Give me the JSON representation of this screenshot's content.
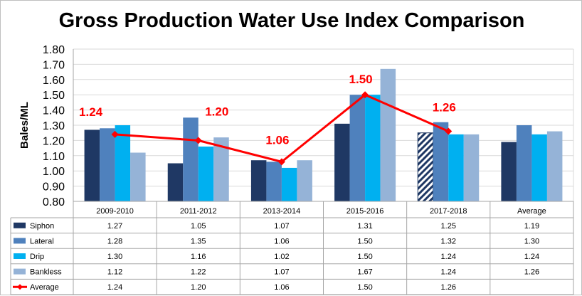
{
  "chart_data": {
    "type": "bar",
    "title": "Gross Production Water Use Index Comparison",
    "ylabel": "Bales/ML",
    "xlabel": "",
    "ylim": [
      0.8,
      1.8
    ],
    "yticks": [
      "0.80",
      "0.90",
      "1.00",
      "1.10",
      "1.20",
      "1.30",
      "1.40",
      "1.50",
      "1.60",
      "1.70",
      "1.80"
    ],
    "categories": [
      "2009-2010",
      "2011-2012",
      "2013-2014",
      "2015-2016",
      "2017-2018",
      "Average"
    ],
    "grid": true,
    "legend": "data-table",
    "series": [
      {
        "name": "Siphon",
        "type": "bar",
        "color": "#1f3864",
        "values": [
          1.27,
          1.05,
          1.07,
          1.31,
          1.25,
          1.19
        ],
        "labels": [
          "1.27",
          "1.05",
          "1.07",
          "1.31",
          "1.25",
          "1.19"
        ],
        "hatched_index": 4
      },
      {
        "name": "Lateral",
        "type": "bar",
        "color": "#4f81bd",
        "values": [
          1.28,
          1.35,
          1.06,
          1.5,
          1.32,
          1.3
        ],
        "labels": [
          "1.28",
          "1.35",
          "1.06",
          "1.50",
          "1.32",
          "1.30"
        ]
      },
      {
        "name": "Drip",
        "type": "bar",
        "color": "#00b0f0",
        "values": [
          1.3,
          1.16,
          1.02,
          1.5,
          1.24,
          1.24
        ],
        "labels": [
          "1.30",
          "1.16",
          "1.02",
          "1.50",
          "1.24",
          "1.24"
        ]
      },
      {
        "name": "Bankless",
        "type": "bar",
        "color": "#95b3d7",
        "values": [
          1.12,
          1.22,
          1.07,
          1.67,
          1.24,
          1.26
        ],
        "labels": [
          "1.12",
          "1.22",
          "1.07",
          "1.67",
          "1.24",
          "1.26"
        ]
      },
      {
        "name": "Average",
        "type": "line",
        "color": "#ff0000",
        "values": [
          1.24,
          1.2,
          1.06,
          1.5,
          1.26,
          null
        ],
        "labels": [
          "1.24",
          "1.20",
          "1.06",
          "1.50",
          "1.26",
          ""
        ]
      }
    ]
  }
}
